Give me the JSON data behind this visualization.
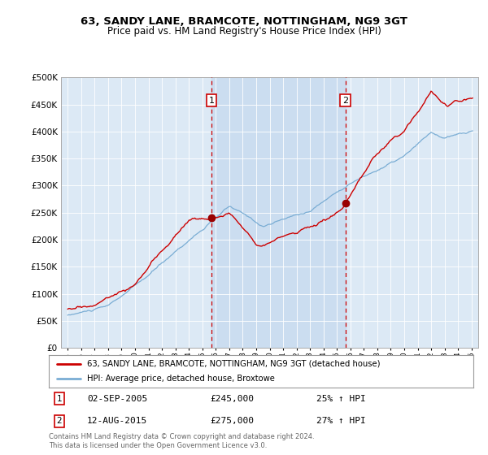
{
  "title1": "63, SANDY LANE, BRAMCOTE, NOTTINGHAM, NG9 3GT",
  "title2": "Price paid vs. HM Land Registry's House Price Index (HPI)",
  "background_color": "#dce9f5",
  "plot_bg_color": "#dce9f5",
  "sale1_date": "02-SEP-2005",
  "sale1_price": 245000,
  "sale1_hpi": "25% ↑ HPI",
  "sale2_date": "12-AUG-2015",
  "sale2_price": 275000,
  "sale2_hpi": "27% ↑ HPI",
  "legend_label1": "63, SANDY LANE, BRAMCOTE, NOTTINGHAM, NG9 3GT (detached house)",
  "legend_label2": "HPI: Average price, detached house, Broxtowe",
  "footer": "Contains HM Land Registry data © Crown copyright and database right 2024.\nThis data is licensed under the Open Government Licence v3.0.",
  "sale1_year": 2005.67,
  "sale2_year": 2015.62,
  "ylim": [
    0,
    500000
  ],
  "xlim_start": 1994.5,
  "xlim_end": 2025.5,
  "red_color": "#cc0000",
  "blue_color": "#7aadd4",
  "shade_color": "#c5d8ee",
  "dot_color": "#990000"
}
